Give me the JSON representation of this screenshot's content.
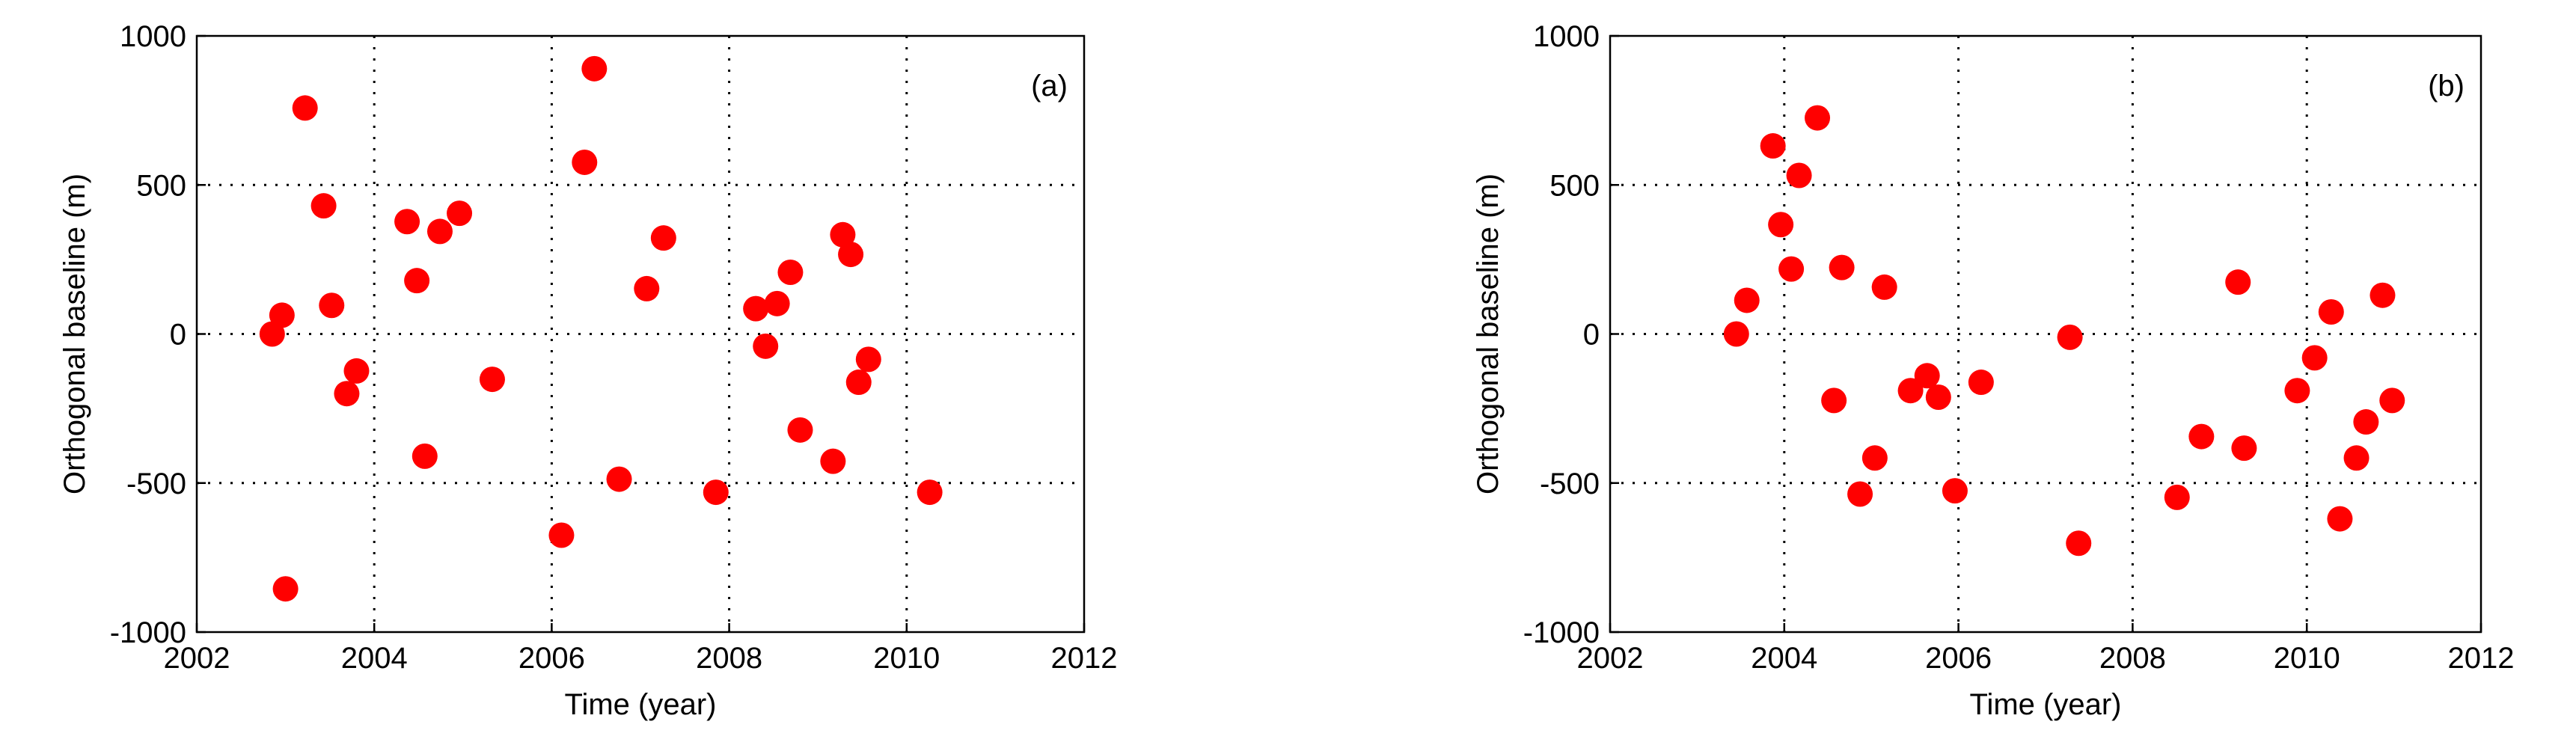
{
  "chart_data": [
    {
      "type": "scatter",
      "annotation": "(a)",
      "xlabel": "Time (year)",
      "ylabel": "Orthogonal baseline (m)",
      "color": "#ff0000",
      "grid": true,
      "xlim": [
        2002,
        2012
      ],
      "xticks": [
        2002,
        2004,
        2006,
        2008,
        2010,
        2012
      ],
      "ylim": [
        -1000,
        1000
      ],
      "yticks": [
        -1000,
        -500,
        0,
        500,
        1000
      ],
      "x": [
        2002.85,
        2002.96,
        2003.22,
        2003.0,
        2003.43,
        2003.52,
        2003.69,
        2003.8,
        2004.37,
        2004.48,
        2004.57,
        2004.74,
        2004.96,
        2005.33,
        2006.11,
        2006.37,
        2006.48,
        2006.76,
        2007.07,
        2007.26,
        2007.85,
        2008.3,
        2008.41,
        2008.54,
        2008.69,
        2008.8,
        2009.17,
        2009.28,
        2009.37,
        2009.46,
        2009.57,
        2010.26
      ],
      "y": [
        0,
        63,
        758,
        -855,
        430,
        96,
        -200,
        -124,
        377,
        179,
        -410,
        344,
        405,
        -152,
        -675,
        576,
        890,
        -487,
        152,
        322,
        -531,
        85,
        -41,
        102,
        207,
        -322,
        -427,
        333,
        267,
        -162,
        -85,
        -531
      ]
    },
    {
      "type": "scatter",
      "annotation": "(b)",
      "xlabel": "Time (year)",
      "ylabel": "Orthogonal baseline (m)",
      "color": "#ff0000",
      "grid": true,
      "xlim": [
        2002,
        2012
      ],
      "xticks": [
        2002,
        2004,
        2006,
        2008,
        2010,
        2012
      ],
      "ylim": [
        -1000,
        1000
      ],
      "yticks": [
        -1000,
        -500,
        0,
        500,
        1000
      ],
      "x": [
        2003.45,
        2003.57,
        2003.87,
        2004.17,
        2004.38,
        2003.96,
        2004.08,
        2004.66,
        2004.57,
        2005.15,
        2004.87,
        2005.04,
        2005.45,
        2005.64,
        2005.77,
        2005.96,
        2006.26,
        2007.28,
        2007.38,
        2008.51,
        2008.79,
        2009.21,
        2009.28,
        2009.89,
        2010.09,
        2010.28,
        2010.38,
        2010.57,
        2010.68,
        2010.87,
        2010.98
      ],
      "y": [
        0,
        113,
        631,
        532,
        725,
        367,
        218,
        223,
        -223,
        157,
        -537,
        -416,
        -190,
        -140,
        -212,
        -526,
        -162,
        -11,
        -702,
        -548,
        -344,
        174,
        -383,
        -190,
        -80,
        74,
        -620,
        -416,
        -295,
        130,
        -223
      ]
    }
  ]
}
